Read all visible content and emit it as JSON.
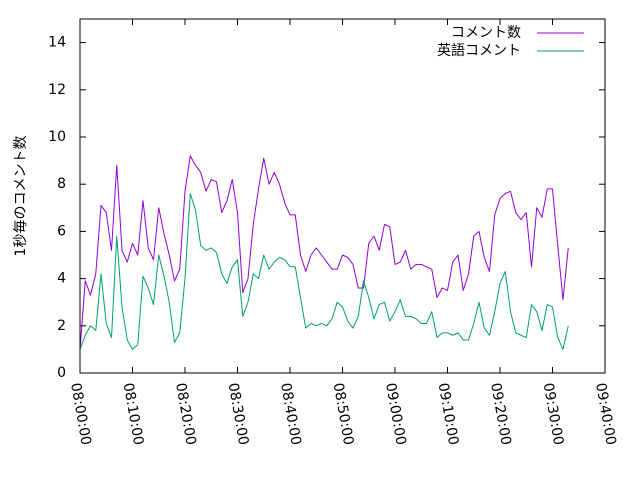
{
  "chart_data": {
    "type": "line",
    "ylabel": "1秒毎のコメント数",
    "ylim": [
      0,
      15
    ],
    "yticks": [
      0,
      2,
      4,
      6,
      8,
      10,
      12,
      14
    ],
    "xlim_minutes": [
      0,
      100
    ],
    "xtick_minutes": [
      0,
      10,
      20,
      30,
      40,
      50,
      60,
      70,
      80,
      90,
      100
    ],
    "xtick_labels": [
      "08:00:00",
      "08:10:00",
      "08:20:00",
      "08:30:00",
      "08:40:00",
      "08:50:00",
      "09:00:00",
      "09:10:00",
      "09:20:00",
      "09:30:00",
      "09:40:00"
    ],
    "legend_position": "top-right",
    "x_minutes": [
      0.0,
      1.0,
      2.0,
      3.0,
      4.0,
      5.0,
      6.0,
      7.0,
      8.0,
      9.0,
      10.0,
      11.0,
      12.0,
      13.0,
      14.0,
      15.0,
      16.0,
      17.0,
      18.0,
      19.0,
      20.0,
      21.0,
      22.0,
      23.0,
      24.0,
      25.0,
      26.0,
      27.0,
      28.0,
      29.0,
      30.0,
      31.0,
      32.0,
      33.0,
      34.0,
      35.0,
      36.0,
      37.0,
      38.0,
      39.0,
      40.0,
      41.0,
      42.0,
      43.0,
      44.0,
      45.0,
      46.0,
      47.0,
      48.0,
      49.0,
      50.0,
      51.0,
      52.0,
      53.0,
      54.0,
      55.0,
      56.0,
      57.0,
      58.0,
      59.0,
      60.0,
      61.0,
      62.0,
      63.0,
      64.0,
      65.0,
      66.0,
      67.0,
      68.0,
      69.0,
      70.0,
      71.0,
      72.0,
      73.0,
      74.0,
      75.0,
      76.0,
      77.0,
      78.0,
      79.0,
      80.0,
      81.0,
      82.0,
      83.0,
      84.0,
      85.0,
      86.0,
      87.0,
      88.0,
      89.0,
      90.0,
      91.0,
      92.0,
      93.0
    ],
    "series": [
      {
        "name": "コメント数",
        "color": "#9400d3",
        "values": [
          1.0,
          3.9,
          3.3,
          4.2,
          7.1,
          6.8,
          5.2,
          8.8,
          5.2,
          4.7,
          5.5,
          5.0,
          7.3,
          5.3,
          4.8,
          7.0,
          5.9,
          5.0,
          3.9,
          4.4,
          7.7,
          9.2,
          8.8,
          8.5,
          7.7,
          8.2,
          8.1,
          6.8,
          7.3,
          8.2,
          6.8,
          3.4,
          4.0,
          6.3,
          7.8,
          9.1,
          8.0,
          8.5,
          8.0,
          7.2,
          6.7,
          6.7,
          5.0,
          4.3,
          5.0,
          5.3,
          5.0,
          4.7,
          4.4,
          4.4,
          5.0,
          4.9,
          4.6,
          3.6,
          3.6,
          5.5,
          5.8,
          5.2,
          6.3,
          6.2,
          4.6,
          4.7,
          5.2,
          4.4,
          4.6,
          4.6,
          4.5,
          4.4,
          3.2,
          3.6,
          3.5,
          4.7,
          5.0,
          3.5,
          4.2,
          5.8,
          6.0,
          4.9,
          4.3,
          6.7,
          7.4,
          7.6,
          7.7,
          6.8,
          6.5,
          6.8,
          4.5,
          7.0,
          6.6,
          7.8,
          7.8,
          5.4,
          3.1,
          5.3
        ]
      },
      {
        "name": "英語コメント",
        "color": "#009e73",
        "values": [
          1.0,
          1.6,
          2.0,
          1.8,
          4.2,
          2.1,
          1.5,
          5.8,
          2.8,
          1.4,
          1.0,
          1.2,
          4.1,
          3.6,
          2.9,
          5.0,
          4.1,
          3.0,
          1.3,
          1.7,
          4.0,
          7.6,
          6.9,
          5.4,
          5.2,
          5.3,
          5.1,
          4.2,
          3.8,
          4.5,
          4.8,
          2.4,
          3.0,
          4.2,
          4.0,
          5.0,
          4.4,
          4.7,
          4.9,
          4.8,
          4.5,
          4.5,
          3.2,
          1.9,
          2.1,
          2.0,
          2.1,
          2.0,
          2.3,
          3.0,
          2.8,
          2.2,
          1.9,
          2.4,
          3.9,
          3.2,
          2.3,
          2.9,
          3.0,
          2.2,
          2.6,
          3.1,
          2.4,
          2.4,
          2.3,
          2.1,
          2.1,
          2.6,
          1.5,
          1.7,
          1.7,
          1.6,
          1.7,
          1.4,
          1.4,
          2.1,
          3.0,
          1.9,
          1.6,
          2.6,
          3.8,
          4.3,
          2.6,
          1.7,
          1.6,
          1.5,
          2.9,
          2.6,
          1.8,
          2.9,
          2.8,
          1.5,
          1.0,
          2.0
        ]
      }
    ]
  }
}
